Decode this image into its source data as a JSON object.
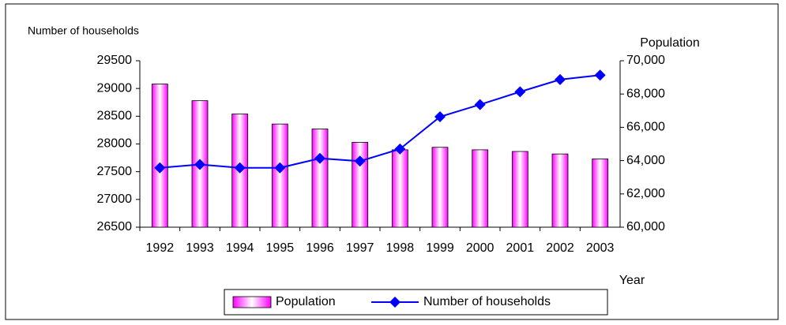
{
  "chart_data": {
    "type": "bar",
    "x_label": "Year",
    "y_label": "Number of households",
    "y2_label": "Population",
    "categories": [
      "1992",
      "1993",
      "1994",
      "1995",
      "1996",
      "1997",
      "1998",
      "1999",
      "2000",
      "2001",
      "2002",
      "2003"
    ],
    "series": [
      {
        "name": "Population",
        "type": "bar",
        "axis": "y2",
        "color": "#ff00ff",
        "values": [
          68600,
          67600,
          66800,
          66200,
          65900,
          65100,
          64650,
          64800,
          64650,
          64550,
          64400,
          64100
        ]
      },
      {
        "name": "Number of households",
        "type": "line",
        "axis": "y",
        "color": "#0000ff",
        "values": [
          27570,
          27630,
          27570,
          27570,
          27740,
          27690,
          27910,
          28490,
          28710,
          28940,
          29160,
          29240
        ]
      }
    ],
    "ylim": [
      26500,
      29500
    ],
    "yticks": [
      26500,
      27000,
      27500,
      28000,
      28500,
      29000,
      29500
    ],
    "y2lim": [
      60000,
      70000
    ],
    "y2ticks": [
      {
        "value": 60000,
        "label": "60,000"
      },
      {
        "value": 62000,
        "label": "62,000"
      },
      {
        "value": 64000,
        "label": "64,000"
      },
      {
        "value": 66000,
        "label": "66,000"
      },
      {
        "value": 68000,
        "label": "68,000"
      },
      {
        "value": 70000,
        "label": "70,000"
      }
    ],
    "legend": "bottom"
  }
}
